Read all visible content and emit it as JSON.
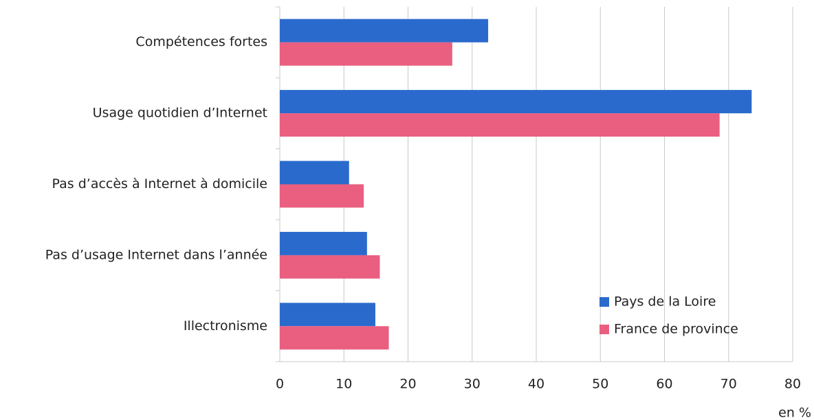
{
  "chart_data": {
    "type": "hbar",
    "categories": [
      "Compétences fortes",
      "Usage quotidien d’Internet",
      "Pas d’accès à Internet à domicile",
      "Pas d’usage Internet dans l’année",
      "Illectronisme"
    ],
    "series": [
      {
        "name": "Pays de la Loire",
        "color": "#2a6acd",
        "values": [
          32.5,
          73.6,
          10.8,
          13.6,
          14.9
        ]
      },
      {
        "name": "France de province",
        "color": "#ea5f80",
        "values": [
          26.9,
          68.6,
          13.1,
          15.6,
          17.0
        ]
      }
    ],
    "xlim": [
      0,
      80
    ],
    "xticks": [
      0,
      10,
      20,
      30,
      40,
      50,
      60,
      70,
      80
    ],
    "x_axis_label": "en %",
    "grid": true,
    "legend": "lower right"
  }
}
